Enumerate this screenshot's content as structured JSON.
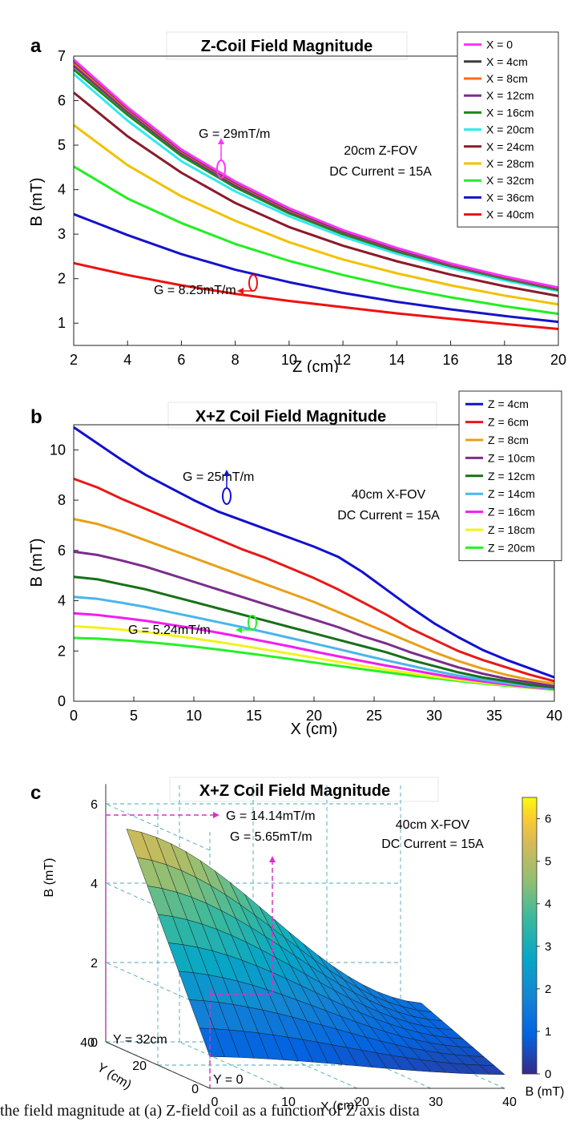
{
  "caption": "the field magnitude at (a) Z-field coil as a function of Z axis dista",
  "chart_data": [
    {
      "panel": "a",
      "type": "line",
      "title": "Z-Coil Field Magnitude",
      "xlabel": "Z (cm)",
      "ylabel": "B (mT)",
      "xlim": [
        2,
        20
      ],
      "ylim": [
        0.5,
        7
      ],
      "xticks": [
        2,
        4,
        6,
        8,
        10,
        12,
        14,
        16,
        18,
        20
      ],
      "yticks": [
        1,
        2,
        3,
        4,
        5,
        6,
        7
      ],
      "grid": false,
      "legend_position": "top-right",
      "annotations": {
        "note1": "20cm Z-FOV",
        "note2": "DC Current = 15A",
        "g_top": "G = 29mT/m",
        "g_bottom": "G = 8.25mT/m"
      },
      "x": [
        2,
        4,
        6,
        8,
        10,
        12,
        14,
        16,
        18,
        20
      ],
      "series": [
        {
          "name": "X = 0",
          "color": "#ff33ff",
          "values": [
            6.92,
            5.85,
            4.9,
            4.18,
            3.58,
            3.09,
            2.69,
            2.34,
            2.05,
            1.8
          ]
        },
        {
          "name": "X = 4cm",
          "color": "#3c3c3c",
          "values": [
            6.9,
            5.83,
            4.88,
            4.16,
            3.56,
            3.07,
            2.67,
            2.33,
            2.04,
            1.79
          ]
        },
        {
          "name": "X = 8cm",
          "color": "#ff6a13",
          "values": [
            6.85,
            5.8,
            4.86,
            4.14,
            3.54,
            3.06,
            2.66,
            2.32,
            2.03,
            1.78
          ]
        },
        {
          "name": "X = 12cm",
          "color": "#7b2f8e",
          "values": [
            6.78,
            5.75,
            4.82,
            4.1,
            3.51,
            3.04,
            2.64,
            2.3,
            2.02,
            1.77
          ]
        },
        {
          "name": "X = 16cm",
          "color": "#1a8a1a",
          "values": [
            6.7,
            5.68,
            4.76,
            4.05,
            3.47,
            3.0,
            2.61,
            2.28,
            2.0,
            1.75
          ]
        },
        {
          "name": "X = 20cm",
          "color": "#33e8ee",
          "values": [
            6.6,
            5.55,
            4.64,
            3.96,
            3.4,
            2.94,
            2.56,
            2.24,
            1.96,
            1.72
          ]
        },
        {
          "name": "X = 24cm",
          "color": "#8b1a2a",
          "values": [
            6.18,
            5.2,
            4.38,
            3.7,
            3.16,
            2.74,
            2.39,
            2.09,
            1.83,
            1.61
          ]
        },
        {
          "name": "X = 28cm",
          "color": "#f2c100",
          "values": [
            5.45,
            4.55,
            3.85,
            3.3,
            2.82,
            2.43,
            2.12,
            1.85,
            1.62,
            1.42
          ]
        },
        {
          "name": "X = 32cm",
          "color": "#22ee22",
          "values": [
            4.52,
            3.8,
            3.25,
            2.78,
            2.4,
            2.08,
            1.81,
            1.58,
            1.38,
            1.21
          ]
        },
        {
          "name": "X = 36cm",
          "color": "#1414c8",
          "values": [
            3.45,
            2.98,
            2.55,
            2.2,
            1.92,
            1.68,
            1.48,
            1.31,
            1.16,
            1.03
          ]
        },
        {
          "name": "X = 40cm",
          "color": "#ee1111",
          "values": [
            2.35,
            2.08,
            1.85,
            1.66,
            1.5,
            1.36,
            1.22,
            1.1,
            0.98,
            0.87
          ]
        }
      ]
    },
    {
      "panel": "b",
      "type": "line",
      "title": "X+Z Coil Field Magnitude",
      "xlabel": "X (cm)",
      "ylabel": "B (mT)",
      "xlim": [
        0,
        40
      ],
      "ylim": [
        0,
        11
      ],
      "xticks": [
        0,
        5,
        10,
        15,
        20,
        25,
        30,
        35,
        40
      ],
      "yticks": [
        0,
        2,
        4,
        6,
        8,
        10
      ],
      "grid": false,
      "legend_position": "top-right",
      "annotations": {
        "note1": "40cm X-FOV",
        "note2": "DC Current = 15A",
        "g_top": "G = 25mT/m",
        "g_bottom": "G = 5.24mT/m"
      },
      "x": [
        0,
        2,
        4,
        6,
        8,
        10,
        12,
        14,
        16,
        18,
        20,
        22,
        24,
        26,
        28,
        30,
        32,
        34,
        36,
        38,
        40
      ],
      "series": [
        {
          "name": "Z = 4cm",
          "color": "#1010d0",
          "values": [
            10.9,
            10.25,
            9.6,
            9.0,
            8.5,
            8.0,
            7.55,
            7.2,
            6.85,
            6.5,
            6.15,
            5.75,
            5.15,
            4.45,
            3.75,
            3.1,
            2.55,
            2.05,
            1.65,
            1.3,
            0.95
          ]
        },
        {
          "name": "Z = 6cm",
          "color": "#e81818",
          "values": [
            8.85,
            8.5,
            8.05,
            7.65,
            7.25,
            6.85,
            6.45,
            6.05,
            5.7,
            5.3,
            4.9,
            4.45,
            3.95,
            3.45,
            2.9,
            2.45,
            2.0,
            1.65,
            1.35,
            1.05,
            0.8
          ]
        },
        {
          "name": "Z = 8cm",
          "color": "#e8a018",
          "values": [
            7.25,
            7.05,
            6.75,
            6.4,
            6.05,
            5.7,
            5.35,
            5.0,
            4.65,
            4.3,
            3.95,
            3.55,
            3.15,
            2.75,
            2.35,
            1.95,
            1.6,
            1.3,
            1.05,
            0.85,
            0.7
          ]
        },
        {
          "name": "Z = 10cm",
          "color": "#7a2e8a",
          "values": [
            5.95,
            5.82,
            5.6,
            5.35,
            5.05,
            4.75,
            4.45,
            4.15,
            3.85,
            3.55,
            3.25,
            2.95,
            2.6,
            2.3,
            1.95,
            1.65,
            1.35,
            1.1,
            0.9,
            0.75,
            0.6
          ]
        },
        {
          "name": "Z = 12cm",
          "color": "#187018",
          "values": [
            4.95,
            4.85,
            4.65,
            4.45,
            4.2,
            3.95,
            3.7,
            3.45,
            3.2,
            2.95,
            2.7,
            2.45,
            2.2,
            1.95,
            1.65,
            1.4,
            1.15,
            0.95,
            0.8,
            0.65,
            0.55
          ]
        },
        {
          "name": "Z = 14cm",
          "color": "#4ab6ea",
          "values": [
            4.15,
            4.07,
            3.92,
            3.75,
            3.55,
            3.35,
            3.15,
            2.95,
            2.74,
            2.52,
            2.3,
            2.08,
            1.85,
            1.63,
            1.42,
            1.21,
            1.02,
            0.86,
            0.72,
            0.6,
            0.5
          ]
        },
        {
          "name": "Z = 16cm",
          "color": "#f21cf2",
          "values": [
            3.5,
            3.43,
            3.32,
            3.2,
            3.05,
            2.9,
            2.73,
            2.55,
            2.37,
            2.18,
            1.98,
            1.79,
            1.6,
            1.42,
            1.25,
            1.08,
            0.92,
            0.79,
            0.67,
            0.57,
            0.48
          ]
        },
        {
          "name": "Z = 18cm",
          "color": "#f2f21c",
          "values": [
            2.98,
            2.93,
            2.85,
            2.75,
            2.63,
            2.5,
            2.36,
            2.21,
            2.05,
            1.89,
            1.73,
            1.57,
            1.41,
            1.26,
            1.12,
            0.98,
            0.85,
            0.74,
            0.64,
            0.55,
            0.47
          ]
        },
        {
          "name": "Z = 20cm",
          "color": "#26f026",
          "values": [
            2.52,
            2.49,
            2.43,
            2.36,
            2.27,
            2.17,
            2.06,
            1.94,
            1.81,
            1.68,
            1.54,
            1.41,
            1.28,
            1.15,
            1.03,
            0.92,
            0.81,
            0.71,
            0.62,
            0.54,
            0.46
          ]
        }
      ]
    },
    {
      "panel": "c",
      "type": "surface",
      "title": "X+Z Coil Field Magnitude",
      "xlabel": "X (cm)",
      "ylabel": "Y (cm)",
      "zlabel": "B (mT)",
      "colorbar_label": "B (mT)",
      "xlim": [
        0,
        40
      ],
      "ylim": [
        0,
        40
      ],
      "zlim": [
        0,
        6
      ],
      "xticks": [
        0,
        10,
        20,
        30,
        40
      ],
      "yticks": [
        0,
        20,
        40
      ],
      "zticks": [
        0,
        2,
        4,
        6
      ],
      "colorbar_ticks": [
        0,
        1,
        2,
        3,
        4,
        5,
        6
      ],
      "colorbar_range": [
        0,
        6.5
      ],
      "grid": true,
      "annotations": {
        "note1": "40cm X-FOV",
        "note2": "DC Current = 15A",
        "g1": "G = 14.14mT/m",
        "g2": "G = 5.65mT/m",
        "y_top": "Y = 32cm",
        "y_bottom": "Y = 0"
      },
      "surface_model": {
        "B_at_x0": [
          0.8,
          5.6
        ],
        "y_range": [
          0,
          32
        ],
        "B_at_x40": 0.25
      }
    }
  ]
}
